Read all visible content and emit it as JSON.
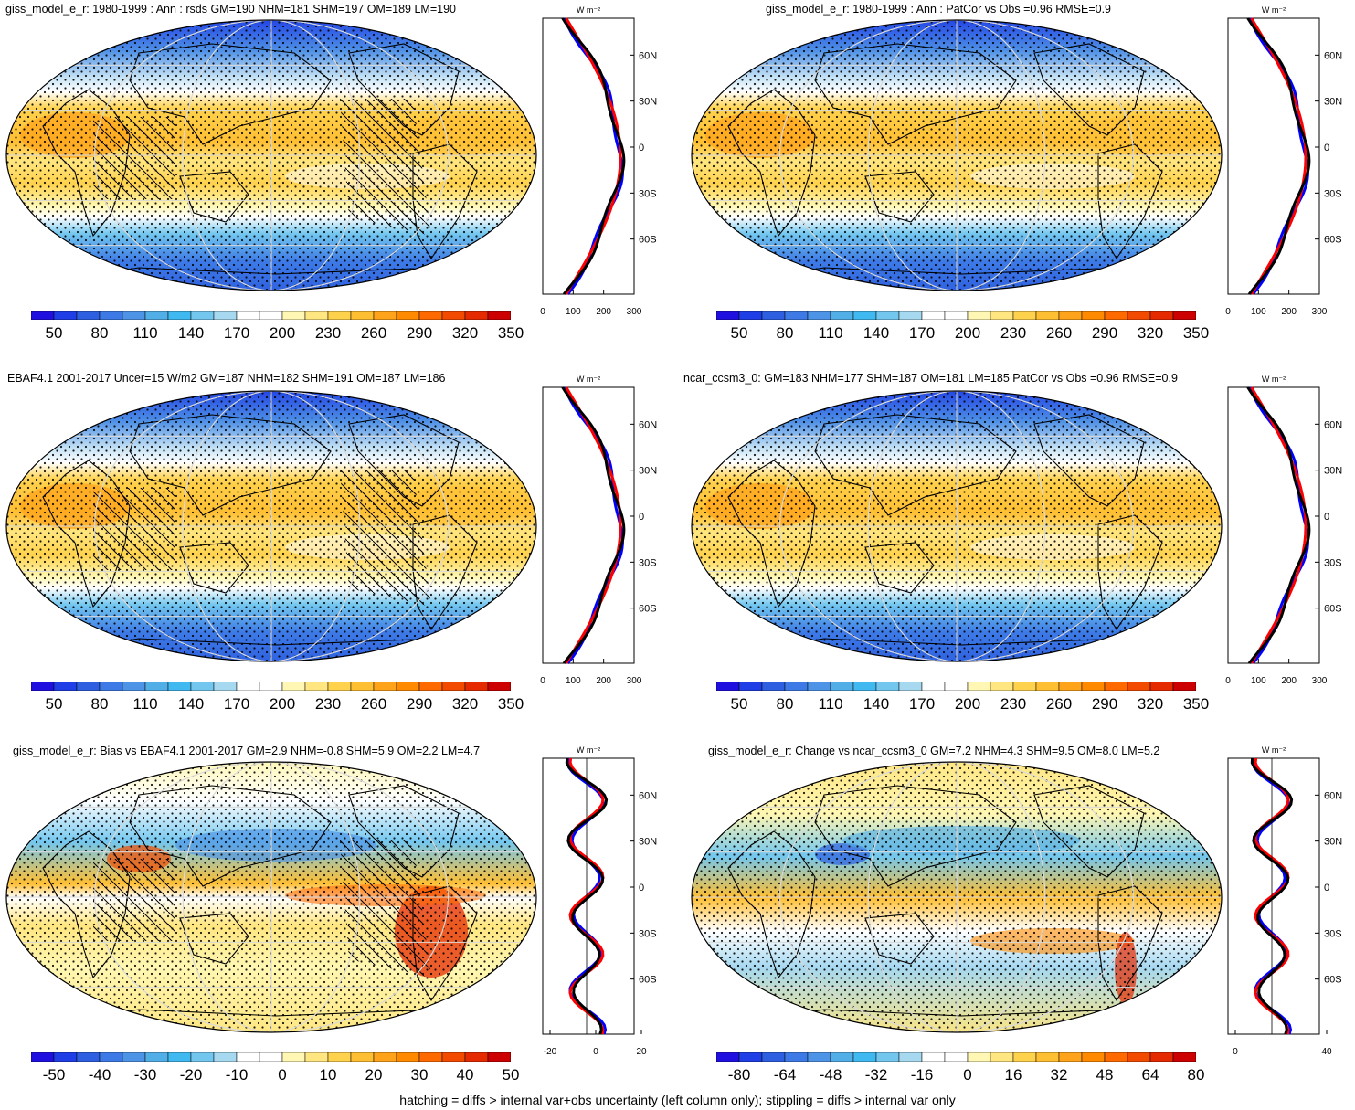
{
  "footer": "hatching = diffs > internal var+obs uncertainty (left column only); stippling = diffs > internal var only",
  "profile_unit": "W m⁻²",
  "lat_ticks": [
    "60N",
    "30N",
    "0",
    "30S",
    "60S"
  ],
  "colors": {
    "model": "#ff0000",
    "obs": "#0000ff",
    "mean": "#000000"
  },
  "colorbar_colors": [
    "#1f10e0",
    "#1f3ee6",
    "#2e5fe0",
    "#3d7ae6",
    "#4d93e6",
    "#52aee6",
    "#40b8f0",
    "#73c7ef",
    "#a6d8f0",
    "#ffffff",
    "#ffffff",
    "#fff7b3",
    "#ffe680",
    "#ffd24d",
    "#ffbf33",
    "#ffa31a",
    "#ff8a00",
    "#ff6a00",
    "#f24b00",
    "#e62a00",
    "#cc0000"
  ],
  "panels": [
    {
      "id": "tl",
      "title": "giss_model_e_r: 1980-1999 : Ann : rsds GM=190 NHM=181 SHM=197 OM=189 LM=190",
      "colorbar_labels": [
        "50",
        "80",
        "110",
        "140",
        "170",
        "200",
        "230",
        "260",
        "290",
        "320",
        "350"
      ],
      "profile_ticks": [
        "0",
        "100",
        "200",
        "300"
      ],
      "kind": "abs"
    },
    {
      "id": "tr",
      "title": "giss_model_e_r: 1980-1999 : Ann : PatCor vs Obs =0.96 RMSE=0.9",
      "colorbar_labels": [
        "50",
        "80",
        "110",
        "140",
        "170",
        "200",
        "230",
        "260",
        "290",
        "320",
        "350"
      ],
      "profile_ticks": [
        "0",
        "100",
        "200",
        "300"
      ],
      "kind": "abs"
    },
    {
      "id": "ml",
      "title": "EBAF4.1 2001-2017 Uncer=15 W/m2 GM=187 NHM=182 SHM=191 OM=187 LM=186",
      "colorbar_labels": [
        "50",
        "80",
        "110",
        "140",
        "170",
        "200",
        "230",
        "260",
        "290",
        "320",
        "350"
      ],
      "profile_ticks": [
        "0",
        "100",
        "200",
        "300"
      ],
      "kind": "abs"
    },
    {
      "id": "mr",
      "title": "ncar_ccsm3_0: GM=183 NHM=177 SHM=187 OM=181 LM=185 PatCor vs Obs =0.96 RMSE=0.9",
      "colorbar_labels": [
        "50",
        "80",
        "110",
        "140",
        "170",
        "200",
        "230",
        "260",
        "290",
        "320",
        "350"
      ],
      "profile_ticks": [
        "0",
        "100",
        "200",
        "300"
      ],
      "kind": "abs"
    },
    {
      "id": "bl",
      "title": "giss_model_e_r: Bias vs EBAF4.1 2001-2017 GM=2.9 NHM=-0.8 SHM=5.9 OM=2.2 LM=4.7",
      "colorbar_labels": [
        "-50",
        "-40",
        "-30",
        "-20",
        "-10",
        "0",
        "10",
        "20",
        "30",
        "40",
        "50"
      ],
      "profile_ticks": [
        "-20",
        "0",
        "20"
      ],
      "kind": "diff"
    },
    {
      "id": "br",
      "title": "giss_model_e_r: Change vs ncar_ccsm3_0 GM=7.2 NHM=4.3 SHM=9.5 OM=8.0 LM=5.2",
      "colorbar_labels": [
        "-80",
        "-64",
        "-48",
        "-32",
        "-16",
        "0",
        "16",
        "32",
        "48",
        "64",
        "80"
      ],
      "profile_ticks": [
        "0",
        "40"
      ],
      "kind": "diff"
    }
  ]
}
